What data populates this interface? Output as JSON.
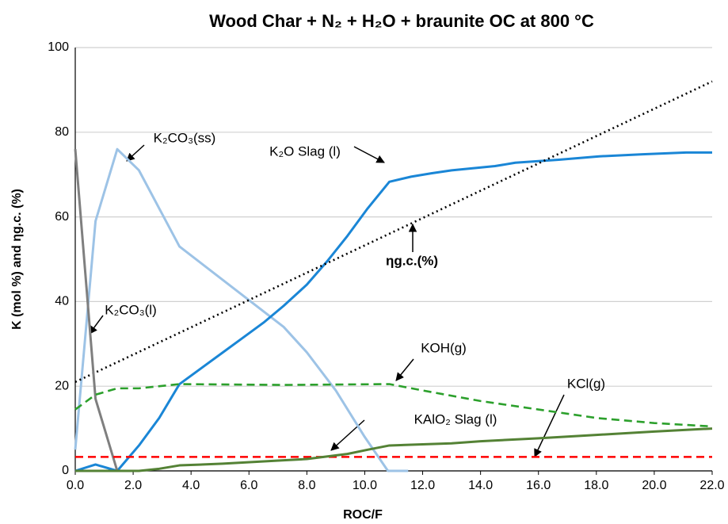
{
  "chart_data": {
    "type": "line",
    "title": "Wood Char + N₂ + H₂O + braunite OC at 800 °C",
    "xlabel": "ROC/F",
    "ylabel": "K (mol %) and ηg.c. (%)",
    "xlim": [
      0,
      22
    ],
    "xticks": [
      {
        "value": 0,
        "label": "0.0"
      },
      {
        "value": 2,
        "label": "2.0"
      },
      {
        "value": 4,
        "label": "4.0"
      },
      {
        "value": 6,
        "label": "6.0"
      },
      {
        "value": 8,
        "label": "8.0"
      },
      {
        "value": 10,
        "label": "10.0"
      },
      {
        "value": 12,
        "label": "12.0"
      },
      {
        "value": 14,
        "label": "14.0"
      },
      {
        "value": 16,
        "label": "16.0"
      },
      {
        "value": 18,
        "label": "18.0"
      },
      {
        "value": 20,
        "label": "20.0"
      },
      {
        "value": 22,
        "label": "22.0"
      }
    ],
    "ylim": [
      0,
      100
    ],
    "yticks": [
      0,
      20,
      40,
      60,
      80,
      100
    ],
    "grid": true,
    "series": [
      {
        "name": "K₂CO₃(ss)",
        "color": "#9dc3e6",
        "style": "solid",
        "x": [
          0,
          0.7,
          1.45,
          2.2,
          2.9,
          3.6,
          7.2,
          8.0,
          9.0,
          10.0,
          10.8,
          11.5
        ],
        "values": [
          5,
          59,
          76,
          71,
          62,
          53,
          34,
          28,
          19,
          8,
          0,
          0
        ]
      },
      {
        "name": "K₂O Slag (l)",
        "color": "#1a86d6",
        "style": "solid",
        "x": [
          0,
          0.7,
          1.45,
          2.2,
          2.9,
          3.6,
          4.4,
          5.1,
          5.8,
          6.5,
          7.2,
          8.0,
          8.7,
          9.4,
          10.1,
          10.85,
          11.6,
          12.3,
          13.0,
          14.5,
          15.2,
          16.7,
          18.1,
          19.6,
          21.1,
          22
        ],
        "values": [
          0,
          1.5,
          0,
          6,
          12.5,
          20.5,
          24.5,
          28,
          31.5,
          35,
          39,
          44,
          49.5,
          55.5,
          62,
          68.3,
          69.5,
          70.3,
          71,
          72,
          72.8,
          73.5,
          74.3,
          74.8,
          75.2,
          75.2
        ]
      },
      {
        "name": "ηg.c.(%)",
        "color": "#000000",
        "style": "dotted",
        "x": [
          0,
          22
        ],
        "values": [
          21,
          92
        ]
      },
      {
        "name": "K₂CO₃(l)",
        "color": "#7f7f7f",
        "style": "solid",
        "x": [
          0,
          0.7,
          1.45
        ],
        "values": [
          76,
          17,
          0
        ]
      },
      {
        "name": "KOH(g)",
        "color": "#2ca02c",
        "style": "dashed",
        "x": [
          0,
          0.7,
          1.45,
          2.2,
          2.9,
          3.6,
          7.2,
          10.85,
          12,
          14,
          16,
          18,
          20,
          22
        ],
        "values": [
          14.5,
          18,
          19.5,
          19.5,
          20,
          20.5,
          20.3,
          20.5,
          19,
          16.5,
          14.5,
          12.5,
          11.3,
          10.5
        ]
      },
      {
        "name": "KCl(g)",
        "color": "#ff0000",
        "style": "dashed",
        "x": [
          0,
          22
        ],
        "values": [
          3.3,
          3.3
        ]
      },
      {
        "name": "KAlO₂ Slag (l)",
        "color": "#548235",
        "style": "solid",
        "x": [
          0,
          2.2,
          2.9,
          3.6,
          5.1,
          7.2,
          8.0,
          9.4,
          10.1,
          10.85,
          13,
          14,
          16,
          18,
          20,
          22
        ],
        "values": [
          0,
          0,
          0.5,
          1.3,
          1.7,
          2.5,
          2.8,
          4,
          5,
          6,
          6.5,
          7,
          7.7,
          8.5,
          9.3,
          10
        ]
      }
    ]
  }
}
